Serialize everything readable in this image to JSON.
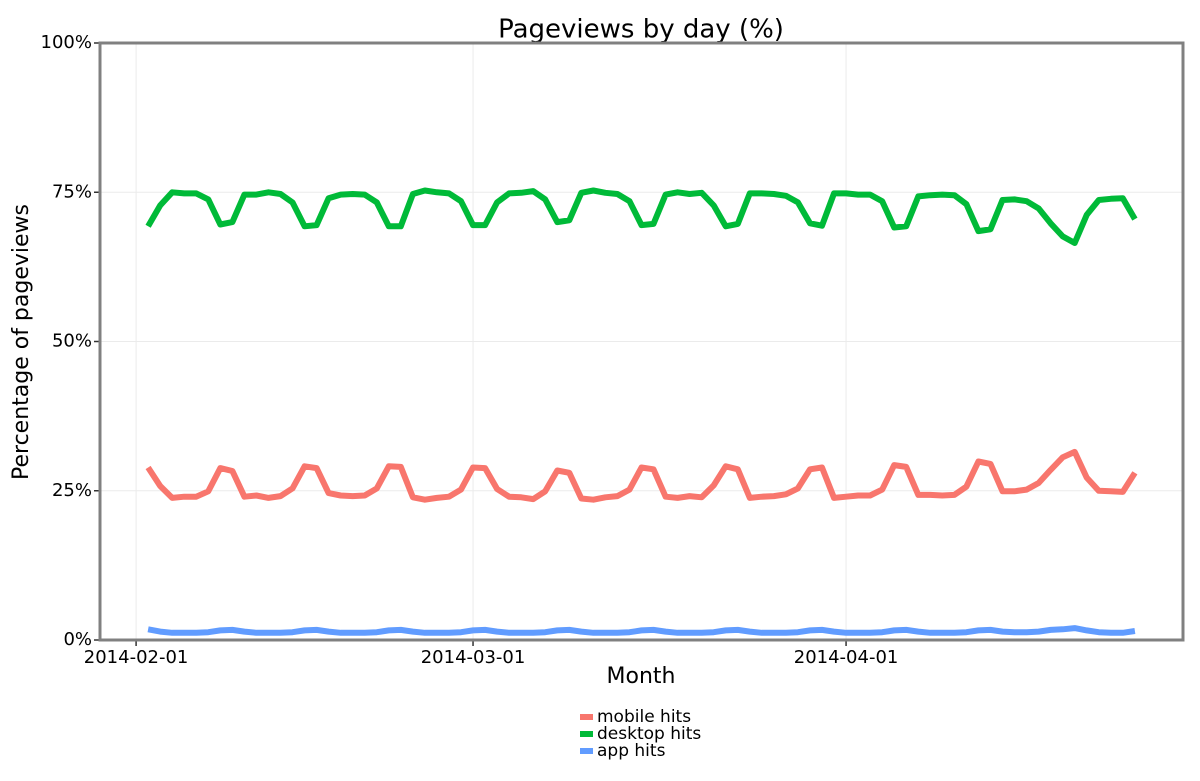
{
  "chart_data": {
    "type": "line",
    "title": "Pageviews by day (%)",
    "x_label": "Month",
    "y_label": "Percentage of pageviews",
    "x": [
      "2014-02-02",
      "2014-02-03",
      "2014-02-04",
      "2014-02-05",
      "2014-02-06",
      "2014-02-07",
      "2014-02-08",
      "2014-02-09",
      "2014-02-10",
      "2014-02-11",
      "2014-02-12",
      "2014-02-13",
      "2014-02-14",
      "2014-02-15",
      "2014-02-16",
      "2014-02-17",
      "2014-02-18",
      "2014-02-19",
      "2014-02-20",
      "2014-02-21",
      "2014-02-22",
      "2014-02-23",
      "2014-02-24",
      "2014-02-25",
      "2014-02-26",
      "2014-02-27",
      "2014-02-28",
      "2014-03-01",
      "2014-03-02",
      "2014-03-03",
      "2014-03-04",
      "2014-03-05",
      "2014-03-06",
      "2014-03-07",
      "2014-03-08",
      "2014-03-09",
      "2014-03-10",
      "2014-03-11",
      "2014-03-12",
      "2014-03-13",
      "2014-03-14",
      "2014-03-15",
      "2014-03-16",
      "2014-03-17",
      "2014-03-18",
      "2014-03-19",
      "2014-03-20",
      "2014-03-21",
      "2014-03-22",
      "2014-03-23",
      "2014-03-24",
      "2014-03-25",
      "2014-03-26",
      "2014-03-27",
      "2014-03-28",
      "2014-03-29",
      "2014-03-30",
      "2014-03-31",
      "2014-04-01",
      "2014-04-02",
      "2014-04-03",
      "2014-04-04",
      "2014-04-05",
      "2014-04-06",
      "2014-04-07",
      "2014-04-08",
      "2014-04-09",
      "2014-04-10",
      "2014-04-11",
      "2014-04-12",
      "2014-04-13",
      "2014-04-14",
      "2014-04-15",
      "2014-04-16",
      "2014-04-17",
      "2014-04-18",
      "2014-04-19",
      "2014-04-20",
      "2014-04-21",
      "2014-04-22",
      "2014-04-23",
      "2014-04-24",
      "2014-04-25"
    ],
    "series": [
      {
        "name": "mobile hits",
        "color": "#F8766D",
        "values": [
          28.9,
          25.8,
          23.8,
          24,
          24,
          24.9,
          28.8,
          28.3,
          24,
          24.2,
          23.8,
          24.1,
          25.4,
          29.1,
          28.8,
          24.6,
          24.2,
          24.1,
          24.2,
          25.4,
          29.1,
          29,
          23.9,
          23.5,
          23.8,
          24,
          25.2,
          28.9,
          28.8,
          25.3,
          24,
          23.9,
          23.6,
          24.9,
          28.4,
          28,
          23.7,
          23.5,
          23.9,
          24.1,
          25.2,
          28.9,
          28.6,
          24,
          23.8,
          24.1,
          23.9,
          25.9,
          29.1,
          28.6,
          23.8,
          24,
          24.1,
          24.4,
          25.4,
          28.6,
          28.9,
          23.8,
          24,
          24.2,
          24.2,
          25.2,
          29.3,
          29,
          24.3,
          24.3,
          24.2,
          24.3,
          25.7,
          29.9,
          29.5,
          24.9,
          24.9,
          25.2,
          26.3,
          28.5,
          30.6,
          31.5,
          27.2,
          25,
          24.9,
          24.8,
          28
        ]
      },
      {
        "name": "desktop hits",
        "color": "#00BA38",
        "values": [
          69.3,
          72.8,
          75,
          74.8,
          74.8,
          73.8,
          69.6,
          70,
          74.6,
          74.6,
          75,
          74.7,
          73.3,
          69.3,
          69.5,
          74,
          74.6,
          74.7,
          74.6,
          73.3,
          69.3,
          69.3,
          74.7,
          75.3,
          75,
          74.8,
          73.5,
          69.5,
          69.5,
          73.3,
          74.8,
          74.9,
          75.2,
          73.8,
          70,
          70.3,
          74.9,
          75.3,
          74.9,
          74.7,
          73.5,
          69.5,
          69.7,
          74.6,
          75,
          74.7,
          74.9,
          72.8,
          69.3,
          69.7,
          74.8,
          74.8,
          74.7,
          74.4,
          73.3,
          69.8,
          69.4,
          74.8,
          74.8,
          74.6,
          74.6,
          73.5,
          69.1,
          69.3,
          74.3,
          74.5,
          74.6,
          74.5,
          73,
          68.5,
          68.8,
          73.7,
          73.8,
          73.5,
          72.3,
          69.8,
          67.6,
          66.5,
          71.2,
          73.7,
          73.9,
          74,
          70.5
        ]
      },
      {
        "name": "app hits",
        "color": "#619CFF",
        "values": [
          1.8,
          1.4,
          1.2,
          1.2,
          1.2,
          1.3,
          1.6,
          1.7,
          1.4,
          1.2,
          1.2,
          1.2,
          1.3,
          1.6,
          1.7,
          1.4,
          1.2,
          1.2,
          1.2,
          1.3,
          1.6,
          1.7,
          1.4,
          1.2,
          1.2,
          1.2,
          1.3,
          1.6,
          1.7,
          1.4,
          1.2,
          1.2,
          1.2,
          1.3,
          1.6,
          1.7,
          1.4,
          1.2,
          1.2,
          1.2,
          1.3,
          1.6,
          1.7,
          1.4,
          1.2,
          1.2,
          1.2,
          1.3,
          1.6,
          1.7,
          1.4,
          1.2,
          1.2,
          1.2,
          1.3,
          1.6,
          1.7,
          1.4,
          1.2,
          1.2,
          1.2,
          1.3,
          1.6,
          1.7,
          1.4,
          1.2,
          1.2,
          1.2,
          1.3,
          1.6,
          1.7,
          1.4,
          1.3,
          1.3,
          1.4,
          1.7,
          1.8,
          2.0,
          1.6,
          1.3,
          1.2,
          1.2,
          1.5
        ]
      }
    ],
    "xlim": [
      "2014-01-29",
      "2014-04-29"
    ],
    "xticks": [
      "2014-02-01",
      "2014-03-01",
      "2014-04-01"
    ],
    "ylim": [
      0,
      100
    ],
    "yticks": [
      {
        "value": 0,
        "label": "0%"
      },
      {
        "value": 25,
        "label": "25%"
      },
      {
        "value": 50,
        "label": "50%"
      },
      {
        "value": 75,
        "label": "75%"
      },
      {
        "value": 100,
        "label": "100%"
      }
    ],
    "grid": true,
    "legend": "bottom"
  }
}
